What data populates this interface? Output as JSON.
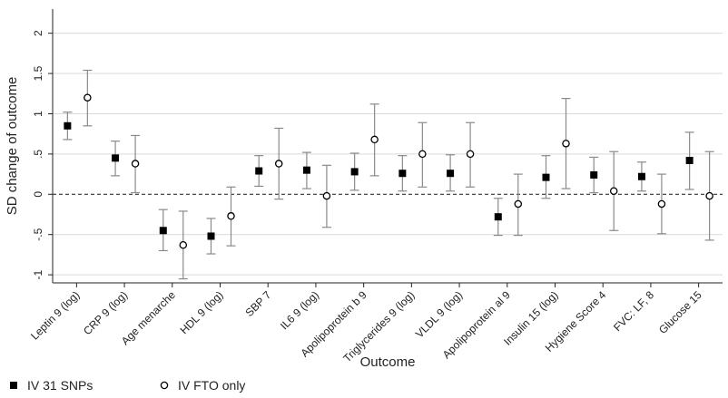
{
  "chart_data": {
    "type": "scatter",
    "title": "",
    "xlabel": "Outcome",
    "ylabel": "SD change of outcome",
    "ylim": [
      -1.1,
      2.3
    ],
    "yticks": [
      -1,
      -0.5,
      0,
      0.5,
      1,
      1.5,
      2
    ],
    "ytick_labels": [
      "-1",
      "-.5",
      "0",
      ".5",
      "1",
      "1.5",
      "2"
    ],
    "grid": true,
    "reference_line": 0,
    "categories": [
      "Leptin 9 (log)",
      "CRP 9 (log)",
      "Age menarche",
      "HDL 9 (log)",
      "SBP 7",
      "IL6 9 (log)",
      "Apolipoprotein b 9",
      "Triglycerides 9 (log)",
      "VLDL 9 (log)",
      "Apolipoprotein al 9",
      "Insulin 15 (log)",
      "Hygiene Score 4",
      "FVC: LF, 8",
      "Glucose 15"
    ],
    "series": [
      {
        "name": "IV 31 SNPs",
        "marker": "filled-square",
        "color": "#000000",
        "values": [
          0.85,
          0.45,
          -0.45,
          -0.52,
          0.29,
          0.3,
          0.28,
          0.26,
          0.26,
          -0.28,
          0.21,
          0.24,
          0.22,
          0.42
        ],
        "lower": [
          0.68,
          0.23,
          -0.7,
          -0.74,
          0.1,
          0.07,
          0.05,
          0.04,
          0.04,
          -0.51,
          -0.05,
          0.02,
          0.04,
          0.06
        ],
        "upper": [
          1.02,
          0.66,
          -0.19,
          -0.3,
          0.48,
          0.52,
          0.51,
          0.48,
          0.49,
          -0.05,
          0.48,
          0.46,
          0.4,
          0.77
        ]
      },
      {
        "name": "IV FTO only",
        "marker": "hollow-circle",
        "color": "#000000",
        "values": [
          1.2,
          0.38,
          -0.63,
          -0.27,
          0.38,
          -0.02,
          0.68,
          0.5,
          0.5,
          -0.12,
          0.63,
          0.04,
          -0.12,
          -0.02
        ],
        "lower": [
          0.85,
          0.02,
          -1.05,
          -0.64,
          -0.06,
          -0.41,
          0.23,
          0.09,
          0.09,
          -0.51,
          0.07,
          -0.45,
          -0.49,
          -0.57
        ],
        "upper": [
          1.54,
          0.73,
          -0.21,
          0.09,
          0.82,
          0.36,
          1.12,
          0.89,
          0.89,
          0.25,
          1.19,
          0.53,
          0.25,
          0.53
        ]
      }
    ],
    "legend": {
      "placement": "bottom-left",
      "entries": [
        "IV 31 SNPs",
        "IV FTO only"
      ]
    },
    "colors": {
      "grid": "#d9d9d9",
      "error_bar": "#8a8a8a",
      "axis": "#222222",
      "reference_line": "#333333"
    }
  }
}
